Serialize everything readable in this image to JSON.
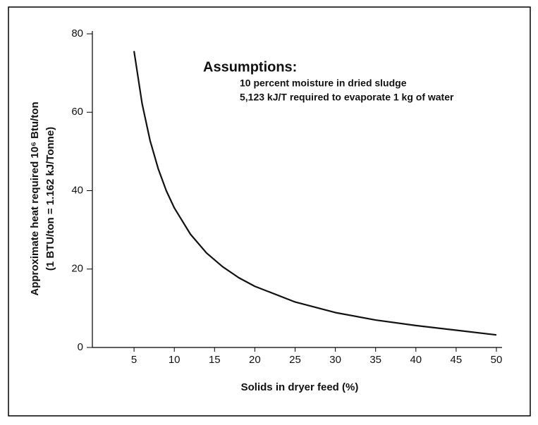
{
  "chart_data": {
    "type": "line",
    "y_label": [
      "Approximate heat required 10⁶ Btu/ton",
      "(1 BTU/ton = 1.162 kJ/Tonne)"
    ],
    "x_label": "Solids in dryer feed (%)",
    "annotations": [
      "Assumptions:",
      "10 percent moisture in dried sludge",
      "5,123 kJ/T required to evaporate 1 kg of water"
    ],
    "x": [
      5,
      6,
      7,
      8,
      9,
      10,
      12,
      14,
      16,
      18,
      20,
      25,
      30,
      35,
      40,
      45,
      50
    ],
    "series": [
      {
        "color": "#111111",
        "values": [
          75.6,
          62.2,
          52.7,
          45.6,
          40.0,
          35.6,
          28.9,
          24.1,
          20.6,
          17.8,
          15.6,
          11.6,
          8.9,
          7.0,
          5.6,
          4.4,
          3.2
        ]
      }
    ],
    "xlim": [
      0,
      50
    ],
    "xticks": [
      5,
      10,
      15,
      20,
      25,
      30,
      35,
      40,
      45,
      50
    ],
    "ylim": [
      0,
      80
    ],
    "yticks": [
      0,
      20,
      40,
      60,
      80
    ]
  }
}
